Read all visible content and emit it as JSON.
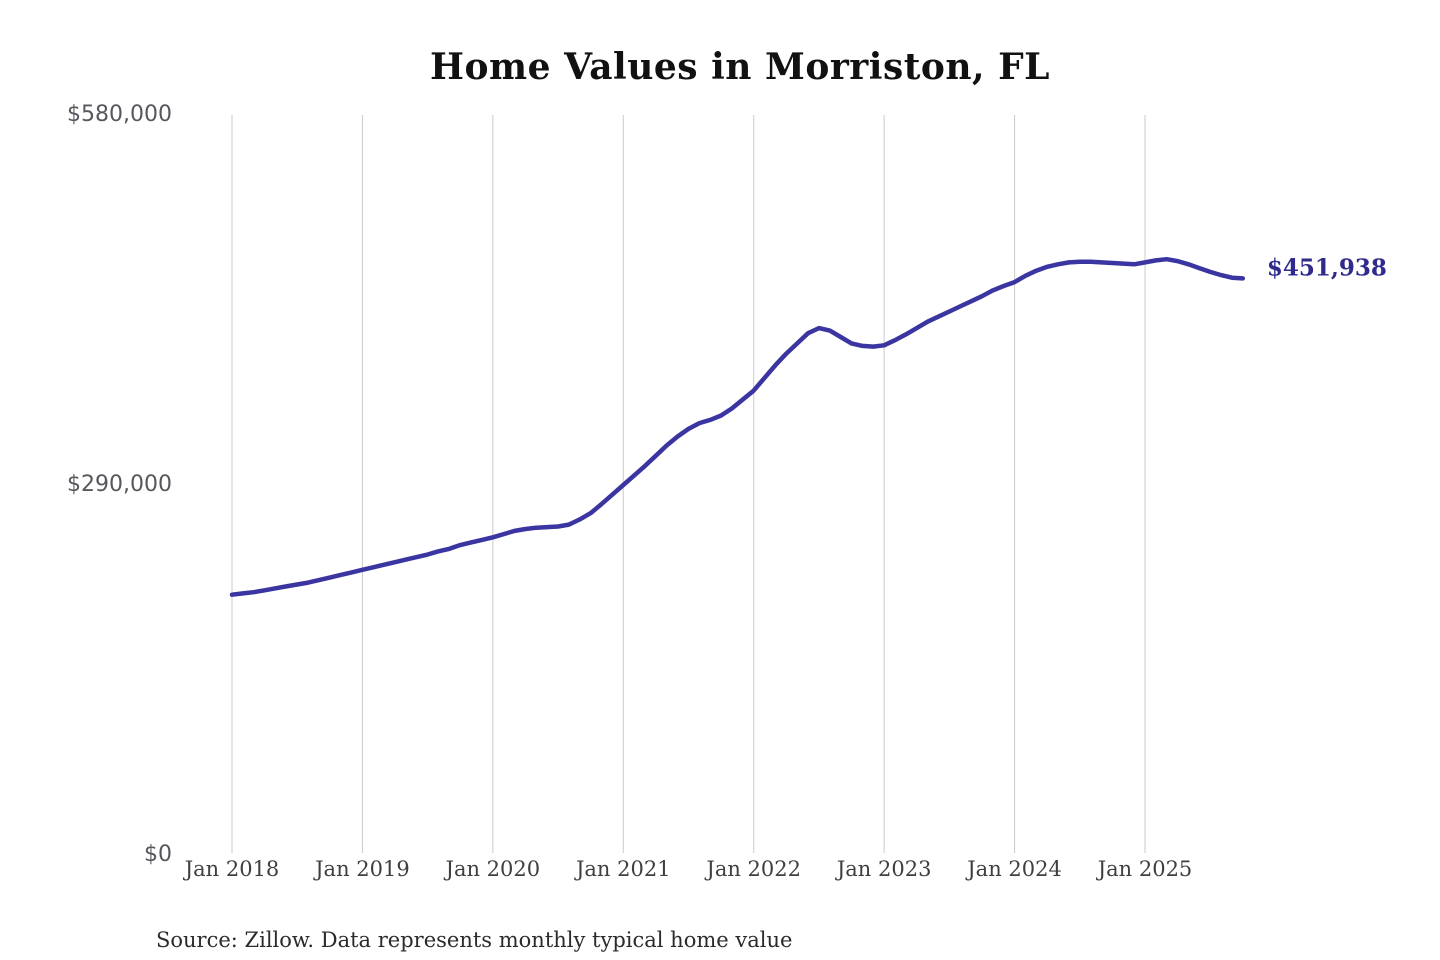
{
  "title": "Home Values in Morriston, FL",
  "source_note": "Source: Zillow. Data represents monthly typical home value",
  "colors": {
    "line": "#3b35a2",
    "end_label": "#2f2a8c",
    "gridline": "#cbcbcb",
    "y_label": "#57575d",
    "x_label": "#3f3f3f",
    "title": "#111111",
    "background": "#ffffff"
  },
  "chart_data": {
    "type": "line",
    "title": "Home Values in Morriston, FL",
    "xlabel": "",
    "ylabel": "",
    "ylim": [
      0,
      580000
    ],
    "grid": "vertical-only",
    "legend": "none",
    "end_label": "$451,938",
    "last_value": 451938,
    "yticks": [
      {
        "value": 0,
        "label": "$0"
      },
      {
        "value": 290000,
        "label": "$290,000"
      },
      {
        "value": 580000,
        "label": "$580,000"
      }
    ],
    "xticks": [
      "Jan 2018",
      "Jan 2019",
      "Jan 2020",
      "Jan 2021",
      "Jan 2022",
      "Jan 2023",
      "Jan 2024",
      "Jan 2025"
    ],
    "series_name": "Monthly typical home value",
    "x": [
      "2018-01",
      "2018-02",
      "2018-03",
      "2018-04",
      "2018-05",
      "2018-06",
      "2018-07",
      "2018-08",
      "2018-09",
      "2018-10",
      "2018-11",
      "2018-12",
      "2019-01",
      "2019-02",
      "2019-03",
      "2019-04",
      "2019-05",
      "2019-06",
      "2019-07",
      "2019-08",
      "2019-09",
      "2019-10",
      "2019-11",
      "2019-12",
      "2020-01",
      "2020-02",
      "2020-03",
      "2020-04",
      "2020-05",
      "2020-06",
      "2020-07",
      "2020-08",
      "2020-09",
      "2020-10",
      "2020-11",
      "2020-12",
      "2021-01",
      "2021-02",
      "2021-03",
      "2021-04",
      "2021-05",
      "2021-06",
      "2021-07",
      "2021-08",
      "2021-09",
      "2021-10",
      "2021-11",
      "2021-12",
      "2022-01",
      "2022-02",
      "2022-03",
      "2022-04",
      "2022-05",
      "2022-06",
      "2022-07",
      "2022-08",
      "2022-09",
      "2022-10",
      "2022-11",
      "2022-12",
      "2023-01",
      "2023-02",
      "2023-03",
      "2023-04",
      "2023-05",
      "2023-06",
      "2023-07",
      "2023-08",
      "2023-09",
      "2023-10",
      "2023-11",
      "2023-12",
      "2024-01",
      "2024-02",
      "2024-03",
      "2024-04",
      "2024-05",
      "2024-06",
      "2024-07",
      "2024-08",
      "2024-09",
      "2024-10",
      "2024-11",
      "2024-12",
      "2025-01",
      "2025-02",
      "2025-03",
      "2025-04",
      "2025-05",
      "2025-06",
      "2025-07",
      "2025-08",
      "2025-09",
      "2025-10"
    ],
    "values": [
      204000,
      205000,
      206000,
      207500,
      209000,
      210500,
      212000,
      213500,
      215500,
      217500,
      219500,
      221500,
      223500,
      225500,
      227500,
      229500,
      231500,
      233500,
      235500,
      238000,
      240000,
      243000,
      245000,
      247000,
      249000,
      251500,
      254000,
      255500,
      256500,
      257000,
      257500,
      259000,
      263000,
      268000,
      275000,
      282500,
      290000,
      297500,
      305000,
      313000,
      321000,
      328000,
      334000,
      338500,
      341000,
      344500,
      350000,
      357000,
      364000,
      374000,
      384000,
      393000,
      401000,
      409000,
      413000,
      411000,
      406000,
      401000,
      399000,
      398500,
      399500,
      403500,
      408000,
      413000,
      418000,
      422000,
      426000,
      430000,
      434000,
      438000,
      442500,
      446000,
      449000,
      454000,
      458000,
      461000,
      463000,
      464500,
      465000,
      465000,
      464500,
      464000,
      463500,
      463000,
      464500,
      466000,
      467000,
      465500,
      463000,
      460000,
      457000,
      454500,
      452500,
      451938
    ]
  }
}
